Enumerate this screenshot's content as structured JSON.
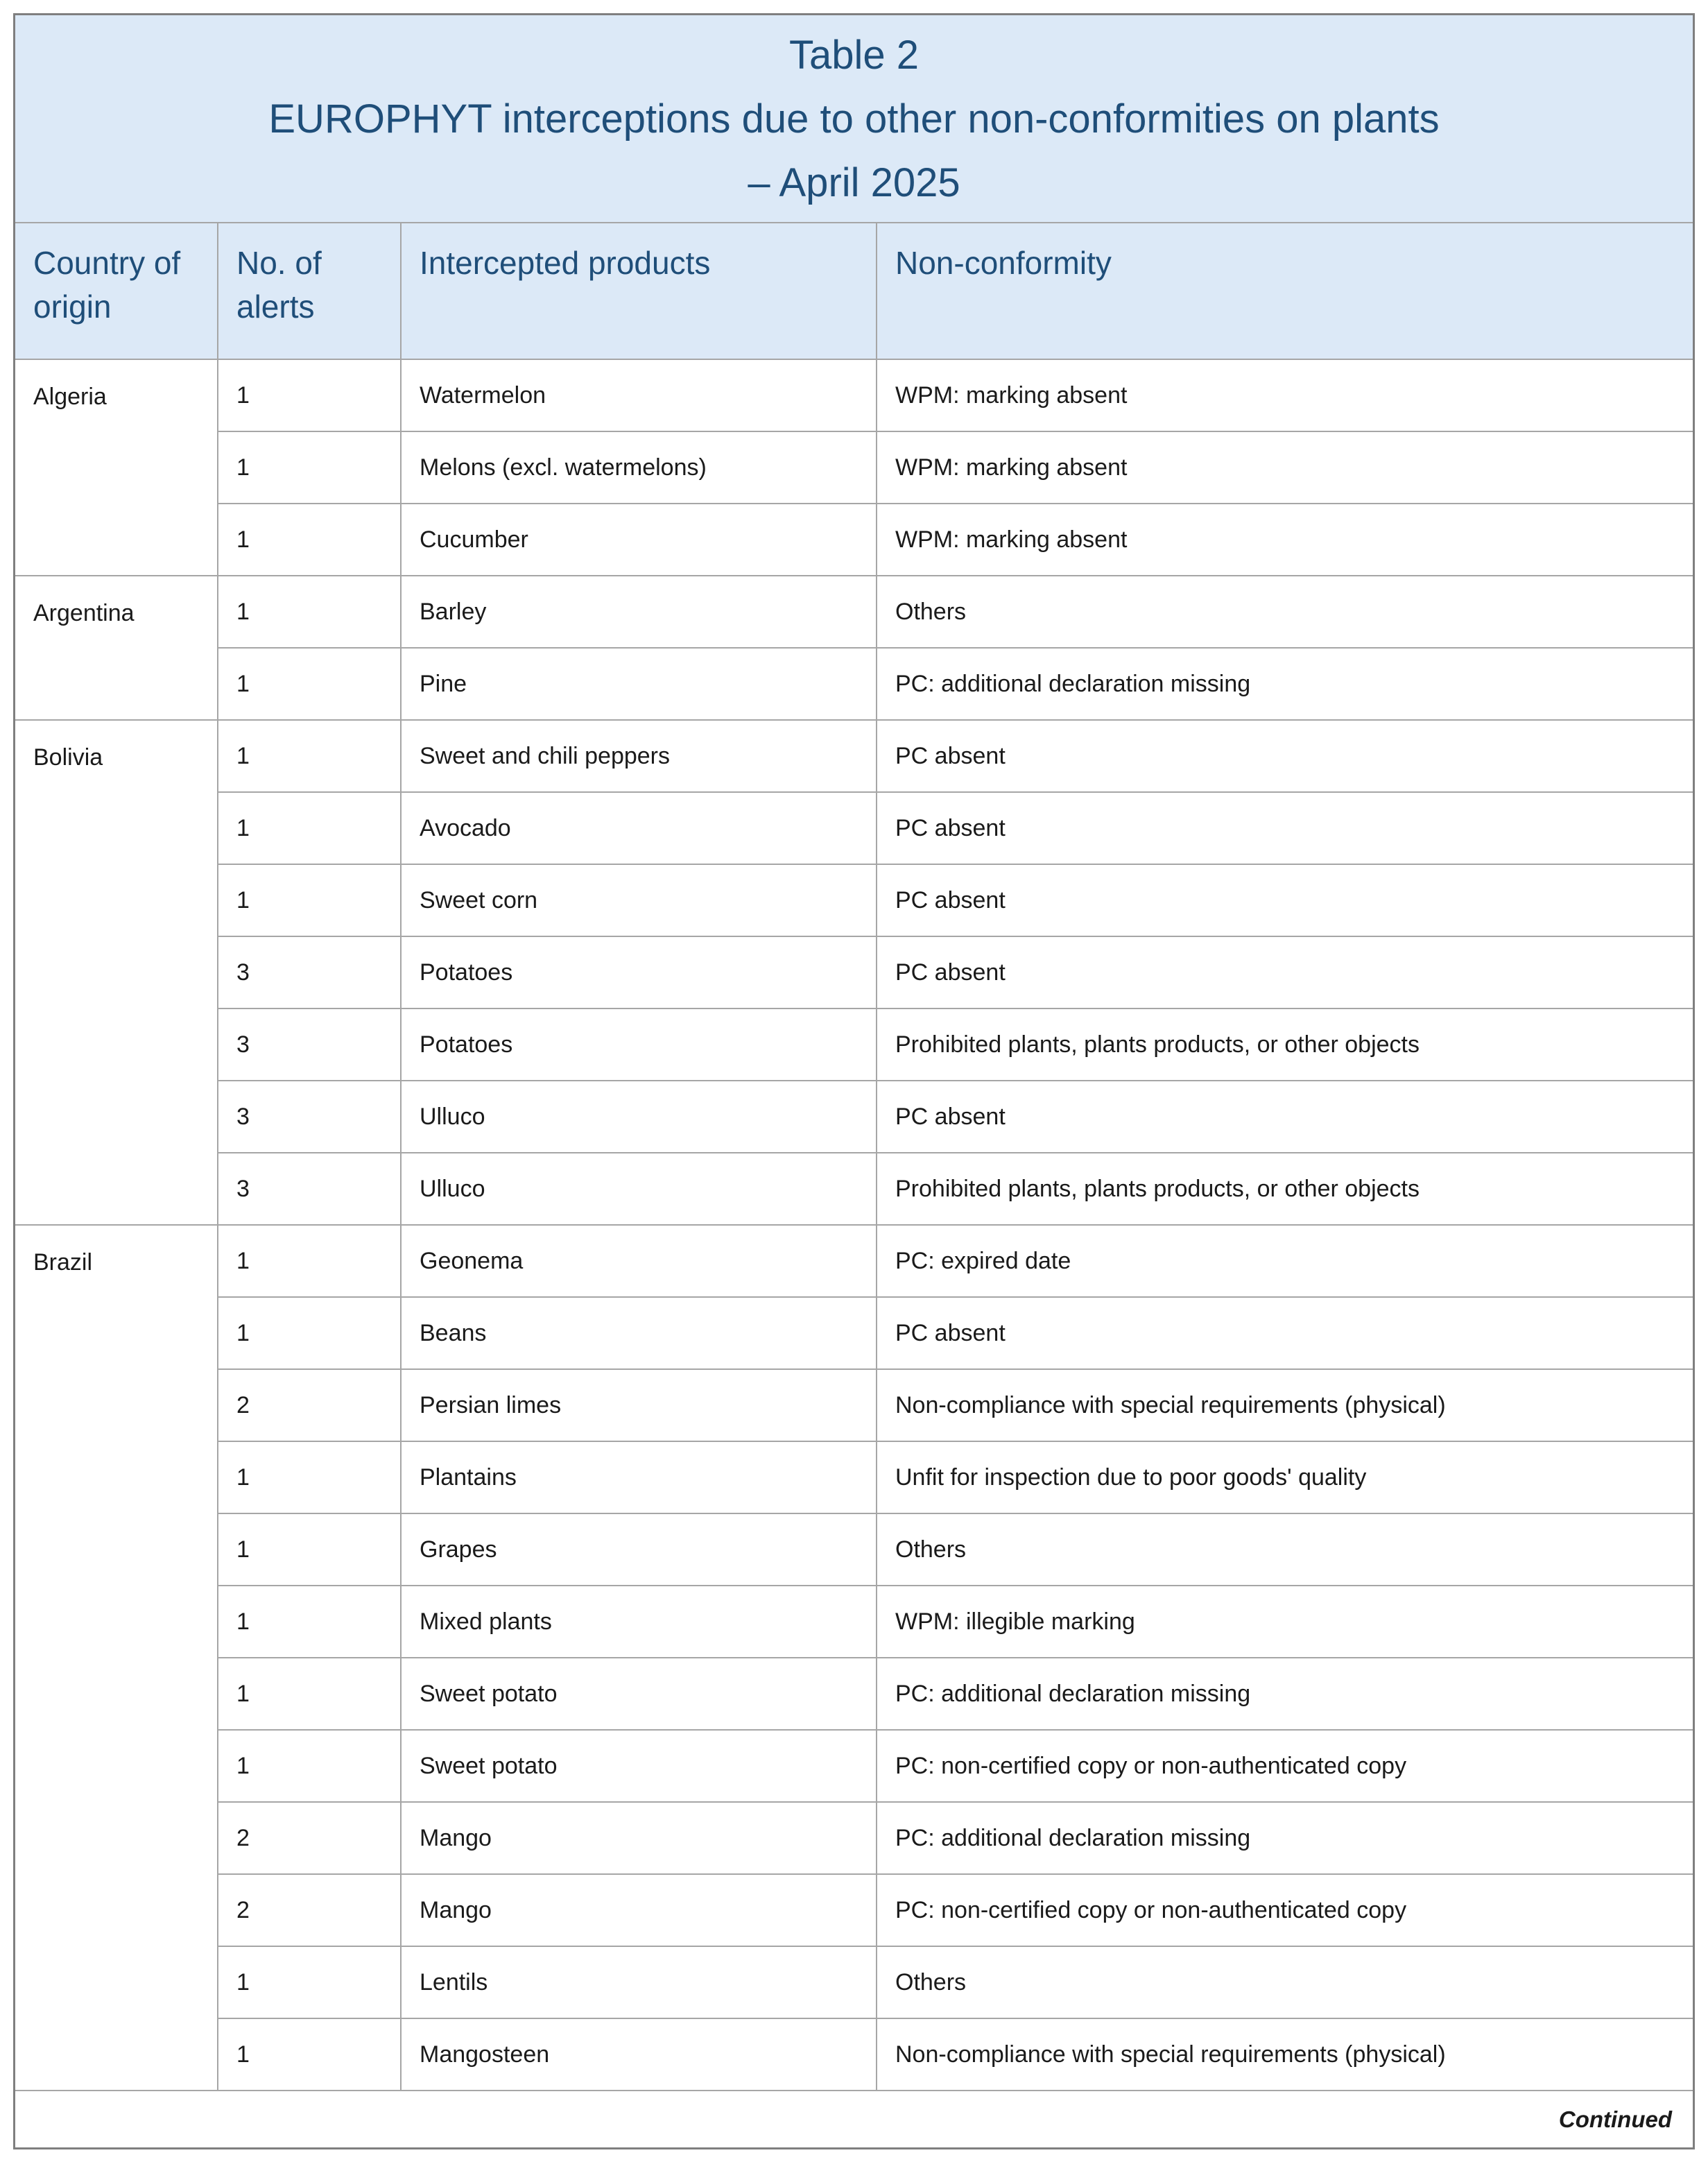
{
  "title": {
    "line1": "Table 2",
    "line2": "EUROPHYT interceptions due to other non-conformities on plants",
    "line3": "– April 2025"
  },
  "columns": [
    "Country of origin",
    "No. of alerts",
    "Intercepted products",
    "Non-conformity"
  ],
  "groups": [
    {
      "country": "Algeria",
      "rows": [
        {
          "alerts": "1",
          "product": "Watermelon",
          "nonconformity": "WPM: marking absent"
        },
        {
          "alerts": "1",
          "product": "Melons (excl. watermelons)",
          "nonconformity": "WPM: marking absent"
        },
        {
          "alerts": "1",
          "product": "Cucumber",
          "nonconformity": "WPM: marking absent"
        }
      ]
    },
    {
      "country": "Argentina",
      "rows": [
        {
          "alerts": "1",
          "product": "Barley",
          "nonconformity": "Others"
        },
        {
          "alerts": "1",
          "product": "Pine",
          "nonconformity": "PC: additional declaration missing"
        }
      ]
    },
    {
      "country": "Bolivia",
      "rows": [
        {
          "alerts": "1",
          "product": "Sweet and chili peppers",
          "nonconformity": "PC absent"
        },
        {
          "alerts": "1",
          "product": "Avocado",
          "nonconformity": "PC absent"
        },
        {
          "alerts": "1",
          "product": "Sweet corn",
          "nonconformity": "PC absent"
        },
        {
          "alerts": "3",
          "product": "Potatoes",
          "nonconformity": "PC absent"
        },
        {
          "alerts": "3",
          "product": "Potatoes",
          "nonconformity": "Prohibited plants, plants products, or other objects"
        },
        {
          "alerts": "3",
          "product": "Ulluco",
          "nonconformity": "PC absent"
        },
        {
          "alerts": "3",
          "product": "Ulluco",
          "nonconformity": "Prohibited plants, plants products, or other objects"
        }
      ]
    },
    {
      "country": "Brazil",
      "rows": [
        {
          "alerts": "1",
          "product": "Geonema",
          "nonconformity": "PC: expired date"
        },
        {
          "alerts": "1",
          "product": "Beans",
          "nonconformity": "PC absent"
        },
        {
          "alerts": "2",
          "product": "Persian limes",
          "nonconformity": "Non-compliance with special requirements (physical)"
        },
        {
          "alerts": "1",
          "product": "Plantains",
          "nonconformity": "Unfit for inspection due to poor goods' quality"
        },
        {
          "alerts": "1",
          "product": "Grapes",
          "nonconformity": "Others"
        },
        {
          "alerts": "1",
          "product": "Mixed plants",
          "nonconformity": "WPM: illegible marking"
        },
        {
          "alerts": "1",
          "product": "Sweet potato",
          "nonconformity": "PC: additional declaration missing"
        },
        {
          "alerts": "1",
          "product": "Sweet potato",
          "nonconformity": "PC: non-certified copy or non-authenticated copy"
        },
        {
          "alerts": "2",
          "product": "Mango",
          "nonconformity": "PC: additional declaration missing"
        },
        {
          "alerts": "2",
          "product": "Mango",
          "nonconformity": "PC: non-certified copy or non-authenticated copy"
        },
        {
          "alerts": "1",
          "product": "Lentils",
          "nonconformity": "Others"
        },
        {
          "alerts": "1",
          "product": "Mangosteen",
          "nonconformity": "Non-compliance with special requirements (physical)"
        }
      ]
    }
  ],
  "footer": {
    "continued_label": "Continued"
  },
  "colors": {
    "header_bg": "#dce9f7",
    "header_text": "#1f4e79",
    "body_text": "#1a1a1a",
    "border_inner": "#a6a6a6",
    "border_outer": "#7f7f7f"
  }
}
